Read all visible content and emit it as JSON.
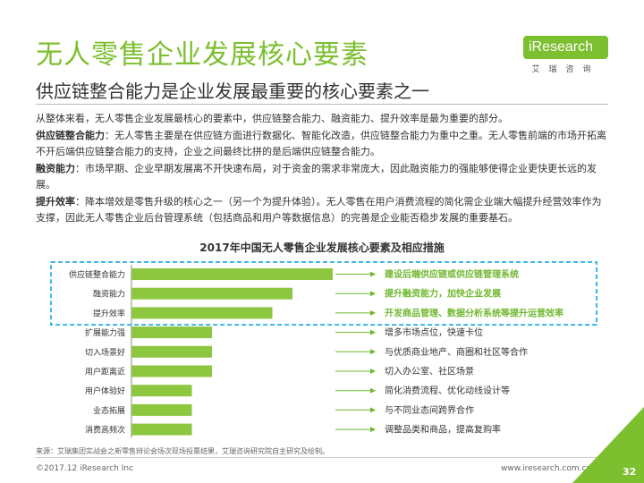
{
  "header": {
    "title": "无人零售企业发展核心要素",
    "subtitle": "供应链整合能力是企业发展最重要的核心要素之一",
    "logo_text": "iResearch",
    "logo_cn": "艾瑞咨询"
  },
  "body": {
    "intro": "从整体来看，无人零售企业发展最核心的要素中，供应链整合能力、融资能力、提升效率是最为重要的部分。",
    "p1_label": "供应链整合能力",
    "p1_text": "：无人零售主要是在供应链方面进行数据化、智能化改造，供应链整合能力为重中之重。无人零售前端的市场开拓离不开后端供应链整合能力的支持，企业之间最终比拼的是后端供应链整合能力。",
    "p2_label": "融资能力",
    "p2_text": "：市场早期、企业早期发展离不开快速布局，对于资金的需求非常庞大，因此融资能力的强能够使得企业更快更长远的发展。",
    "p3_label": "提升效率",
    "p3_text": "：降本增效是零售升级的核心之一（另一个为提升体验）。无人零售在用户消费流程的简化需企业端大幅提升经营效率作为支撑，因此无人零售企业后台管理系统（包括商品和用户等数据信息）的完善是企业能否稳步发展的重要基石。"
  },
  "chart_data": {
    "type": "bar",
    "orientation": "horizontal",
    "title": "2017年中国无人零售企业发展核心要素及相应措施",
    "categories": [
      "供应链整合能力",
      "融资能力",
      "提升效率",
      "扩展能力强",
      "切入场景好",
      "用户距离近",
      "用户体验好",
      "业态拓展",
      "消费高频次"
    ],
    "values": [
      10,
      8,
      7,
      4,
      4,
      4,
      3,
      3,
      3
    ],
    "bar_color": "#8dc63f",
    "measures": [
      "建设后端供应链或供应链管理系统",
      "提升融资能力，加快企业发展",
      "开发商品管理、数据分析系统等提升运营效率",
      "增多市场点位，快速卡位",
      "与优质商业地产、商圈和社区等合作",
      "切入办公室、社区场景",
      "简化消费流程、优化动线设计等",
      "与不同业态间跨界合作",
      "调整品类和商品，提高复购率"
    ],
    "highlight_count": 3,
    "highlight_color": "#00a0dc",
    "measure_highlight_color": "#6fb82e"
  },
  "footer": {
    "source": "来源：艾瑞集团实战会之新零售辩论会场次现场投票结果，艾瑞咨询研究院自主研究及绘制。",
    "copyright": "©2017.12 iResearch Inc",
    "website": "www.iresearch.com.cn",
    "page": "32"
  },
  "colors": {
    "brand_green": "#7cbf2f",
    "bar_green": "#8dc63f",
    "dashed_blue": "#00a0dc"
  }
}
